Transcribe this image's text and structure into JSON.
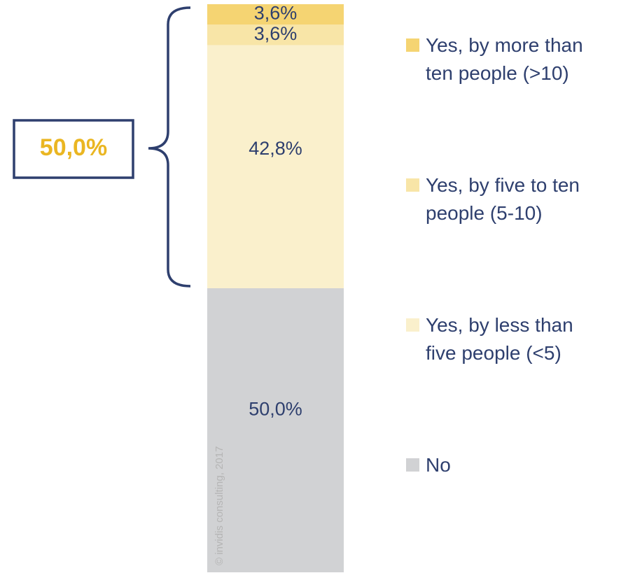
{
  "chart_data": {
    "type": "bar",
    "stacked": true,
    "orientation": "vertical",
    "ylim": [
      0,
      100
    ],
    "series": [
      {
        "name": "No",
        "value": 50.0,
        "label": "50,0%",
        "color": "#d1d2d4"
      },
      {
        "name": "Yes, by less than five people (<5)",
        "value": 42.8,
        "label": "42,8%",
        "color": "#faf0cc"
      },
      {
        "name": "Yes, by five to ten people (5-10)",
        "value": 3.6,
        "label": "3,6%",
        "color": "#f8e5a7"
      },
      {
        "name": "Yes, by more than ten people (>10)",
        "value": 3.6,
        "label": "3,6%",
        "color": "#f5d472"
      }
    ],
    "legend": {
      "position": "right",
      "items": [
        {
          "lines": [
            "Yes, by more than",
            "ten people (>10)"
          ],
          "color": "#f5d472"
        },
        {
          "lines": [
            "Yes, by five to ten",
            "people (5-10)"
          ],
          "color": "#f8e5a7"
        },
        {
          "lines": [
            "Yes, by less than",
            "five people (<5)"
          ],
          "color": "#faf0cc"
        },
        {
          "lines": [
            "No"
          ],
          "color": "#d1d2d4"
        }
      ]
    },
    "annotation": {
      "text": "50,0%",
      "brace_covers": "all yes segments"
    },
    "watermark": "© invidis consulting, 2017",
    "colors": {
      "text": "#2e3f6e",
      "accent": "#eab622",
      "frame": "#2e3f6e"
    }
  }
}
